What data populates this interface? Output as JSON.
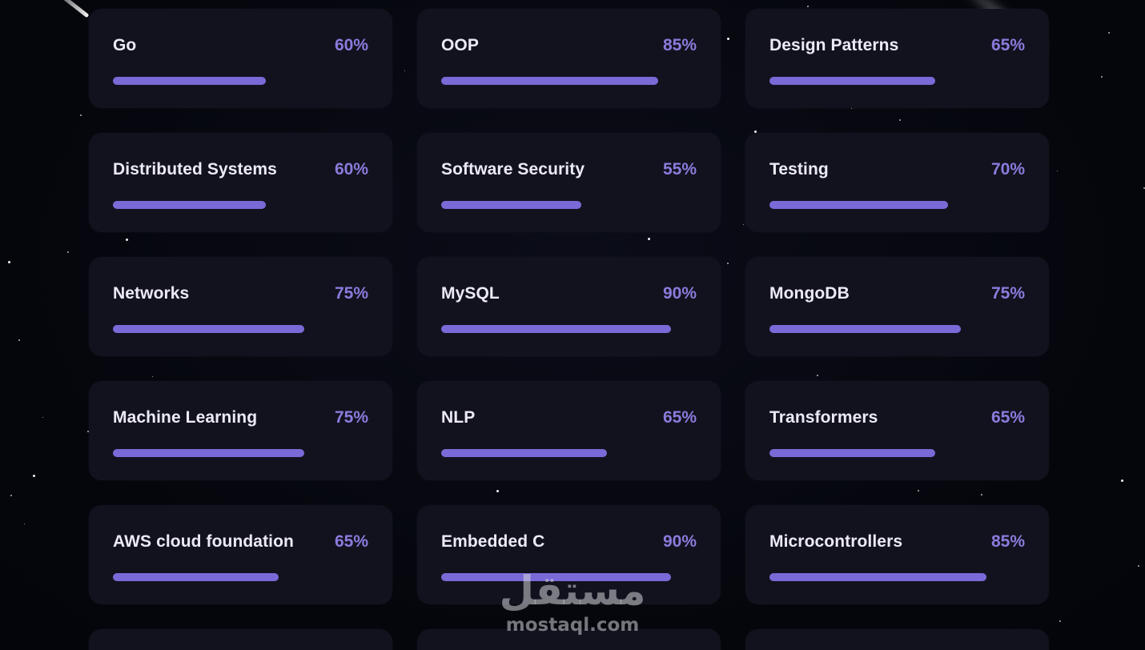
{
  "skills": [
    {
      "name": "Go",
      "percent_label": "60%",
      "level": 0.6
    },
    {
      "name": "OOP",
      "percent_label": "85%",
      "level": 0.85
    },
    {
      "name": "Design Patterns",
      "percent_label": "65%",
      "level": 0.65
    },
    {
      "name": "Distributed Systems",
      "percent_label": "60%",
      "level": 0.6
    },
    {
      "name": "Software Security",
      "percent_label": "55%",
      "level": 0.55
    },
    {
      "name": "Testing",
      "percent_label": "70%",
      "level": 0.7
    },
    {
      "name": "Networks",
      "percent_label": "75%",
      "level": 0.75
    },
    {
      "name": "MySQL",
      "percent_label": "90%",
      "level": 0.9
    },
    {
      "name": "MongoDB",
      "percent_label": "75%",
      "level": 0.75
    },
    {
      "name": "Machine Learning",
      "percent_label": "75%",
      "level": 0.75
    },
    {
      "name": "NLP",
      "percent_label": "65%",
      "level": 0.65
    },
    {
      "name": "Transformers",
      "percent_label": "65%",
      "level": 0.65
    },
    {
      "name": "AWS cloud foundation",
      "percent_label": "65%",
      "level": 0.65
    },
    {
      "name": "Embedded C",
      "percent_label": "90%",
      "level": 0.9
    },
    {
      "name": "Microcontrollers",
      "percent_label": "85%",
      "level": 0.85
    }
  ],
  "partial_cards_count": 3,
  "colors": {
    "background": "#05060d",
    "card": "#12121f",
    "accent": "#7a6ad8",
    "percent_text": "#8b7bdc",
    "name_text": "#eceaf4"
  },
  "watermark": {
    "arabic": "مستقل",
    "latin": "mostaql.com"
  }
}
